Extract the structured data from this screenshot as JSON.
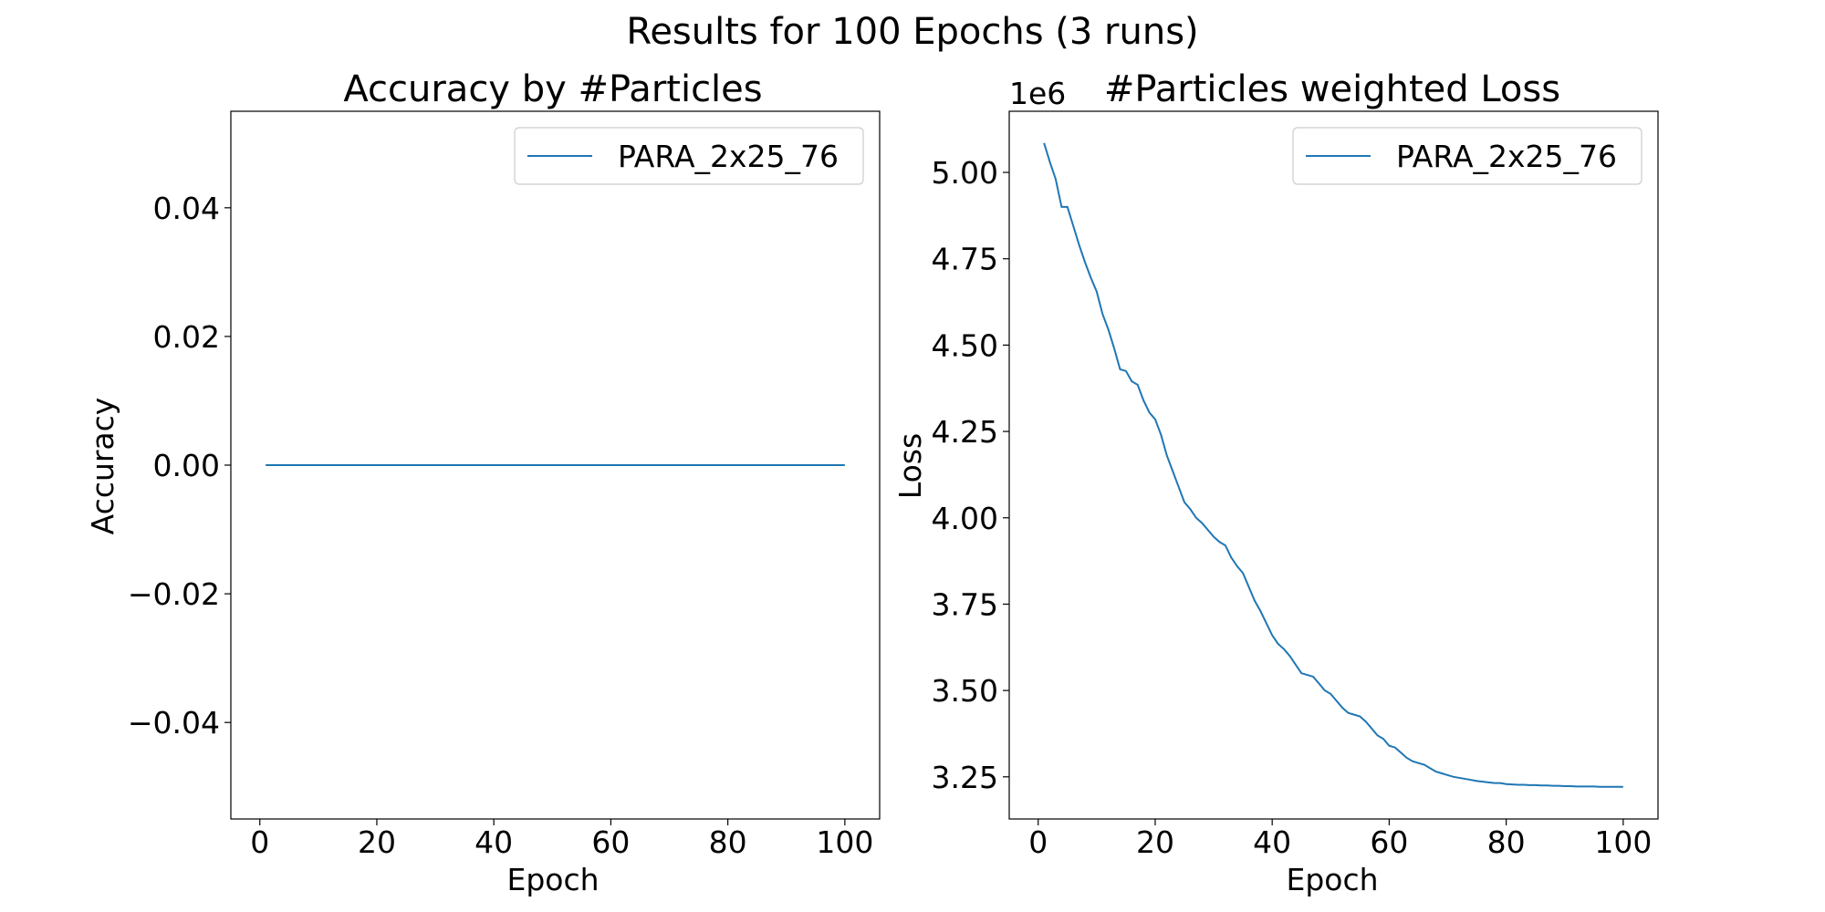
{
  "figure_title": "Results for 100 Epochs (3 runs)",
  "colors": {
    "series": "#1f77b4",
    "axes": "#000000",
    "background": "#ffffff",
    "legend_border": "#cccccc"
  },
  "chart_data": [
    {
      "type": "line",
      "title": "Accuracy by #Particles",
      "xlabel": "Epoch",
      "ylabel": "Accuracy",
      "xlim": [
        -4.95,
        105.95
      ],
      "ylim": [
        -0.055,
        0.055
      ],
      "x_ticks": [
        0,
        20,
        40,
        60,
        80,
        100
      ],
      "y_ticks": [
        -0.04,
        -0.02,
        0.0,
        0.02,
        0.04
      ],
      "x_tick_labels": [
        "0",
        "20",
        "40",
        "60",
        "80",
        "100"
      ],
      "y_tick_labels": [
        "−0.04",
        "−0.02",
        "0.00",
        "0.02",
        "0.04"
      ],
      "offset_text": "",
      "legend_position": "upper right",
      "grid": false,
      "series": [
        {
          "name": "PARA_2x25_76",
          "x_start": 1,
          "x_step": 1,
          "values": [
            0,
            0,
            0,
            0,
            0,
            0,
            0,
            0,
            0,
            0,
            0,
            0,
            0,
            0,
            0,
            0,
            0,
            0,
            0,
            0,
            0,
            0,
            0,
            0,
            0,
            0,
            0,
            0,
            0,
            0,
            0,
            0,
            0,
            0,
            0,
            0,
            0,
            0,
            0,
            0,
            0,
            0,
            0,
            0,
            0,
            0,
            0,
            0,
            0,
            0,
            0,
            0,
            0,
            0,
            0,
            0,
            0,
            0,
            0,
            0,
            0,
            0,
            0,
            0,
            0,
            0,
            0,
            0,
            0,
            0,
            0,
            0,
            0,
            0,
            0,
            0,
            0,
            0,
            0,
            0,
            0,
            0,
            0,
            0,
            0,
            0,
            0,
            0,
            0,
            0,
            0,
            0,
            0,
            0,
            0,
            0,
            0,
            0,
            0,
            0
          ]
        }
      ]
    },
    {
      "type": "line",
      "title": "#Particles weighted Loss",
      "xlabel": "Epoch",
      "ylabel": "Loss",
      "xlim": [
        -4.95,
        105.95
      ],
      "ylim": [
        3.128,
        5.177
      ],
      "x_ticks": [
        0,
        20,
        40,
        60,
        80,
        100
      ],
      "y_ticks": [
        3.25,
        3.5,
        3.75,
        4.0,
        4.25,
        4.5,
        4.75,
        5.0
      ],
      "x_tick_labels": [
        "0",
        "20",
        "40",
        "60",
        "80",
        "100"
      ],
      "y_tick_labels": [
        "3.25",
        "3.50",
        "3.75",
        "4.00",
        "4.25",
        "4.50",
        "4.75",
        "5.00"
      ],
      "offset_text": "1e6",
      "legend_position": "upper right",
      "grid": false,
      "series": [
        {
          "name": "PARA_2x25_76",
          "x_start": 1,
          "x_step": 1,
          "values": [
            5.085,
            5.03,
            4.98,
            4.9,
            4.9,
            4.845,
            4.79,
            4.74,
            4.695,
            4.655,
            4.59,
            4.545,
            4.49,
            4.43,
            4.425,
            4.395,
            4.385,
            4.34,
            4.305,
            4.285,
            4.24,
            4.18,
            4.135,
            4.09,
            4.045,
            4.025,
            4.0,
            3.985,
            3.965,
            3.945,
            3.93,
            3.92,
            3.885,
            3.86,
            3.84,
            3.8,
            3.76,
            3.73,
            3.695,
            3.66,
            3.635,
            3.62,
            3.6,
            3.575,
            3.55,
            3.545,
            3.54,
            3.52,
            3.5,
            3.49,
            3.47,
            3.45,
            3.435,
            3.43,
            3.425,
            3.41,
            3.39,
            3.37,
            3.36,
            3.34,
            3.335,
            3.32,
            3.305,
            3.295,
            3.29,
            3.285,
            3.275,
            3.265,
            3.26,
            3.255,
            3.25,
            3.247,
            3.244,
            3.241,
            3.238,
            3.236,
            3.234,
            3.232,
            3.232,
            3.229,
            3.228,
            3.227,
            3.227,
            3.226,
            3.226,
            3.225,
            3.225,
            3.224,
            3.224,
            3.223,
            3.223,
            3.222,
            3.222,
            3.222,
            3.222,
            3.221,
            3.221,
            3.221,
            3.221,
            3.221
          ]
        }
      ]
    }
  ]
}
